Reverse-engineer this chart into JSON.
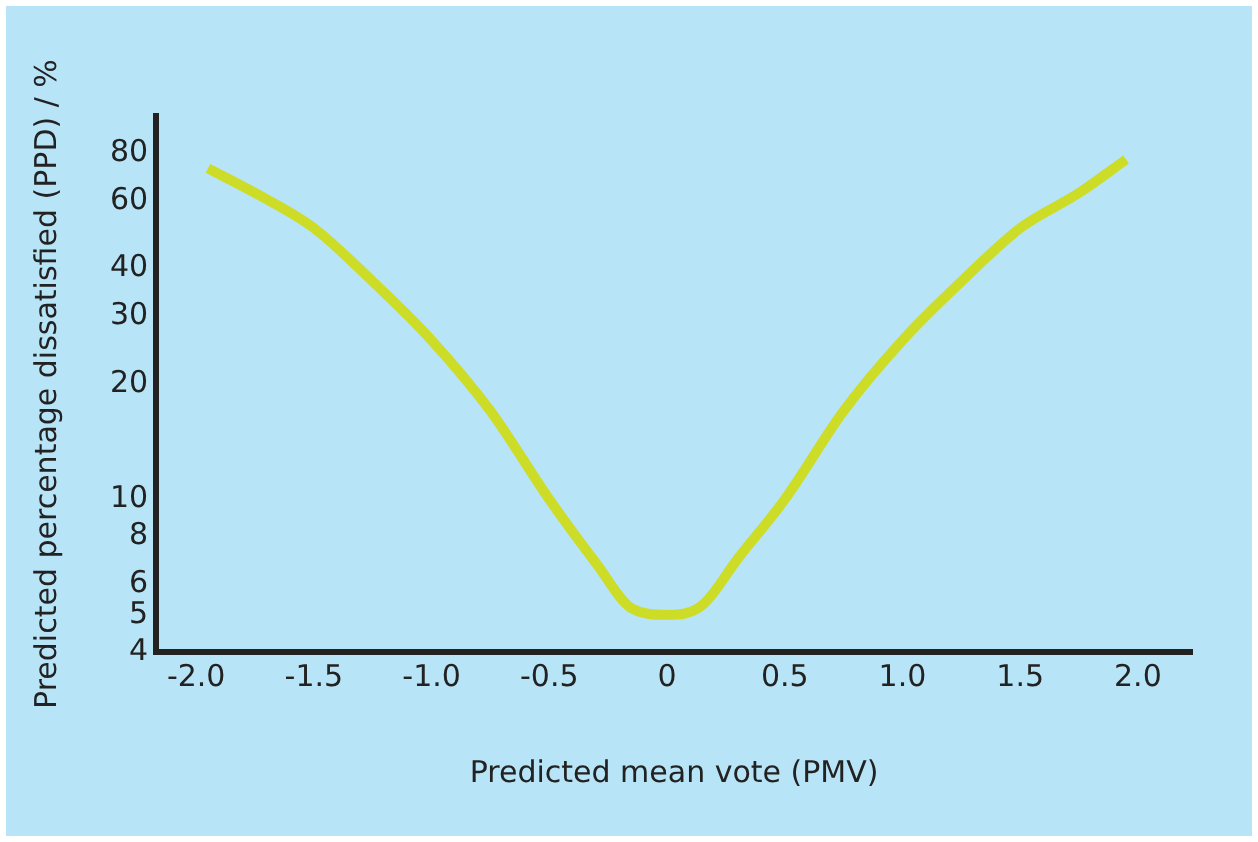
{
  "chart_data": {
    "type": "line",
    "xlabel": "Predicted mean vote (PMV)",
    "ylabel": "Predicted percentage dissatisfied (PPD) / %",
    "x": [
      -1.95,
      -1.75,
      -1.5,
      -1.25,
      -1,
      -0.75,
      -0.5,
      -0.3,
      -0.15,
      0,
      0.15,
      0.3,
      0.5,
      0.75,
      1,
      1.25,
      1.5,
      1.75,
      1.95
    ],
    "series": [
      {
        "color": "#cddc27",
        "values": [
          73,
          63,
          51,
          37,
          26,
          17,
          10,
          6.8,
          5.2,
          5,
          5.3,
          7,
          10,
          17,
          26,
          37,
          51,
          63,
          77
        ]
      }
    ],
    "log": "y",
    "xlim": [
      -2.17,
      2.23
    ],
    "ylim": [
      4,
      100
    ],
    "xticks": [
      {
        "value": -2,
        "label": "-2.0"
      },
      -1.5,
      {
        "value": -1,
        "label": "-1.0"
      },
      -0.5,
      0,
      0.5,
      {
        "value": 1,
        "label": "1.0"
      },
      1.5,
      {
        "value": 2,
        "label": "2.0"
      }
    ],
    "yticks": [
      4,
      5,
      6,
      8,
      10,
      20,
      30,
      40,
      60,
      80
    ],
    "grid": false,
    "legend": false,
    "marker": "none",
    "line_style": "solid"
  }
}
